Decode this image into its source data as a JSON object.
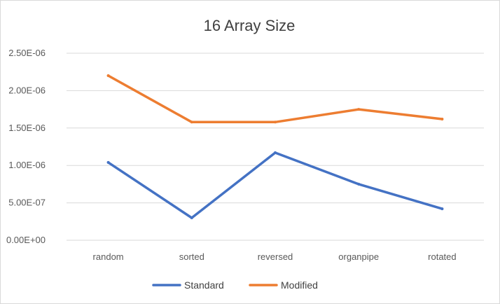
{
  "chart_data": {
    "type": "line",
    "title": "16 Array Size",
    "xlabel": "",
    "ylabel": "",
    "categories": [
      "random",
      "sorted",
      "reversed",
      "organpipe",
      "rotated"
    ],
    "y_ticks": [
      "0.00E+00",
      "5.00E-07",
      "1.00E-06",
      "1.50E-06",
      "2.00E-06",
      "2.50E-06"
    ],
    "ylim": [
      0,
      2.5e-06
    ],
    "grid": true,
    "legend_position": "bottom",
    "series": [
      {
        "name": "Standard",
        "color": "#4472c4",
        "values": [
          1.04e-06,
          3e-07,
          1.17e-06,
          7.5e-07,
          4.2e-07
        ]
      },
      {
        "name": "Modified",
        "color": "#ed7d31",
        "values": [
          2.2e-06,
          1.58e-06,
          1.58e-06,
          1.75e-06,
          1.62e-06
        ]
      }
    ]
  }
}
